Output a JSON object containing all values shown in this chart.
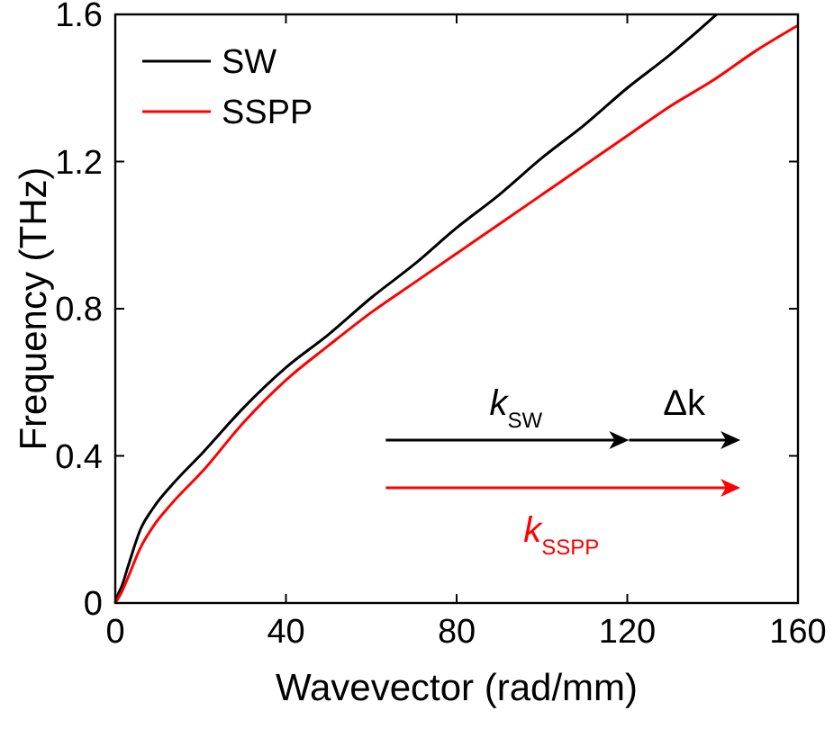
{
  "chart_data": {
    "type": "line",
    "xlabel": "Wavevector (rad/mm)",
    "ylabel": "Frequency (THz)",
    "xlim": [
      0,
      160
    ],
    "ylim": [
      0,
      1.6
    ],
    "xticks": [
      0,
      40,
      80,
      120,
      160
    ],
    "yticks": [
      0,
      0.4,
      0.8,
      1.2,
      1.6
    ],
    "grid": false,
    "legend": "top left",
    "marker": "none",
    "line_style": "solid",
    "annotations": [
      "k$_{SW}$",
      "Δk",
      "k$_{SSPP}$"
    ],
    "series": [
      {
        "name": "SW",
        "color": "#000000",
        "x": [
          0,
          0.7,
          1.5,
          3,
          5.9,
          9,
          13.2,
          20.6,
          30,
          40,
          50,
          60,
          70,
          80,
          90,
          100,
          110,
          120,
          130,
          140.9
        ],
        "values": [
          0,
          0.025,
          0.045,
          0.1,
          0.2,
          0.26,
          0.32,
          0.41,
          0.53,
          0.64,
          0.73,
          0.83,
          0.92,
          1.02,
          1.11,
          1.21,
          1.3,
          1.4,
          1.49,
          1.6
        ]
      },
      {
        "name": "SSPP",
        "color": "#ff0000",
        "x": [
          0,
          1.5,
          3,
          5.9,
          9,
          13.2,
          20.6,
          30,
          40,
          50,
          60,
          70,
          80,
          90,
          100,
          110,
          120,
          130,
          140,
          150,
          160
        ],
        "values": [
          0,
          0.03,
          0.07,
          0.15,
          0.21,
          0.27,
          0.36,
          0.49,
          0.606,
          0.7,
          0.79,
          0.87,
          0.95,
          1.03,
          1.11,
          1.19,
          1.27,
          1.35,
          1.42,
          1.5,
          1.57
        ]
      }
    ]
  }
}
